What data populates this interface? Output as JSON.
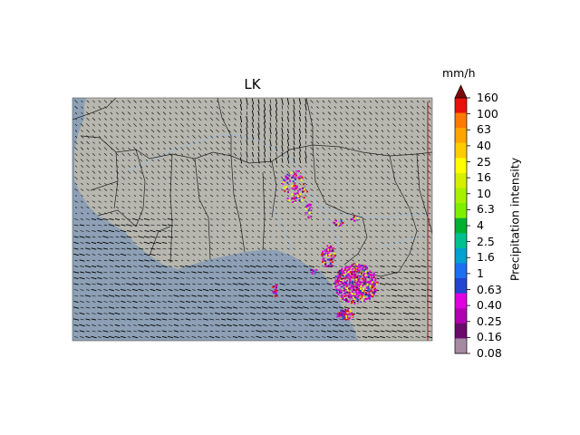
{
  "title": "LK",
  "colorbar": {
    "unit": "mm/h",
    "label": "Precipitation intensity",
    "ticks": [
      "160",
      "100",
      "63",
      "40",
      "25",
      "16",
      "10",
      "6.3",
      "4",
      "2.5",
      "1.6",
      "1",
      "0.63",
      "0.40",
      "0.25",
      "0.16",
      "0.08"
    ],
    "colors": [
      "#e8120a",
      "#ff7a00",
      "#ffa500",
      "#ffcc00",
      "#ffff00",
      "#d4f000",
      "#a8f000",
      "#7df000",
      "#00b030",
      "#00c090",
      "#00a0d0",
      "#1c6ff0",
      "#2244d0",
      "#e000e0",
      "#b000b0",
      "#6a0a6a",
      "#a58aa0"
    ],
    "extend_color": "#7a0a0a"
  },
  "map": {
    "region": "West Africa",
    "ocean_color": "#8da0b5",
    "land_color": "#b7b7b0",
    "overlays": [
      "wind-vectors",
      "country-borders",
      "rivers",
      "precipitation"
    ]
  }
}
